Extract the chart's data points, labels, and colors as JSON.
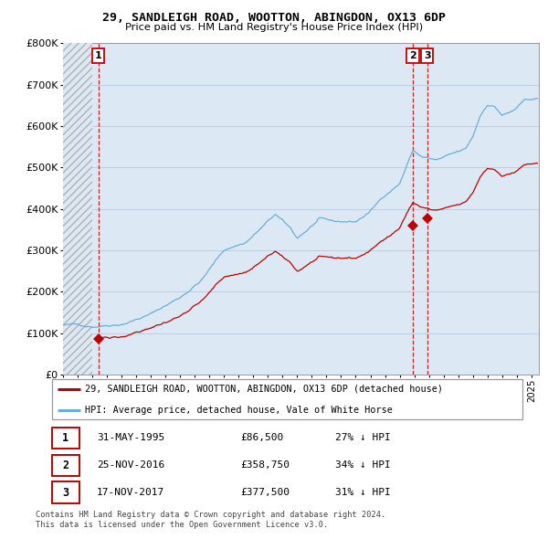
{
  "title": "29, SANDLEIGH ROAD, WOOTTON, ABINGDON, OX13 6DP",
  "subtitle": "Price paid vs. HM Land Registry's House Price Index (HPI)",
  "legend_line1": "29, SANDLEIGH ROAD, WOOTTON, ABINGDON, OX13 6DP (detached house)",
  "legend_line2": "HPI: Average price, detached house, Vale of White Horse",
  "footer1": "Contains HM Land Registry data © Crown copyright and database right 2024.",
  "footer2": "This data is licensed under the Open Government Licence v3.0.",
  "transactions": [
    {
      "num": "1",
      "date": "31-MAY-1995",
      "price": "£86,500",
      "note": "27% ↓ HPI",
      "year": 1995.42,
      "value": 86500
    },
    {
      "num": "2",
      "date": "25-NOV-2016",
      "price": "£358,750",
      "note": "34% ↓ HPI",
      "year": 2016.9,
      "value": 358750
    },
    {
      "num": "3",
      "date": "17-NOV-2017",
      "price": "£377,500",
      "note": "31% ↓ HPI",
      "year": 2017.88,
      "value": 377500
    }
  ],
  "hpi_line_color": "#6baed6",
  "price_line_color": "#c00000",
  "dot_color": "#c00000",
  "hatch_color": "#b0b0b0",
  "chart_bg_color": "#dce9f5",
  "xmin": 1993.0,
  "xmax": 2025.5,
  "ymin": 0,
  "ymax": 800000,
  "yticks": [
    0,
    100000,
    200000,
    300000,
    400000,
    500000,
    600000,
    700000,
    800000
  ],
  "ytick_labels": [
    "£0",
    "£100K",
    "£200K",
    "£300K",
    "£400K",
    "£500K",
    "£600K",
    "£700K",
    "£800K"
  ],
  "grid_color": "#b8cfe8"
}
